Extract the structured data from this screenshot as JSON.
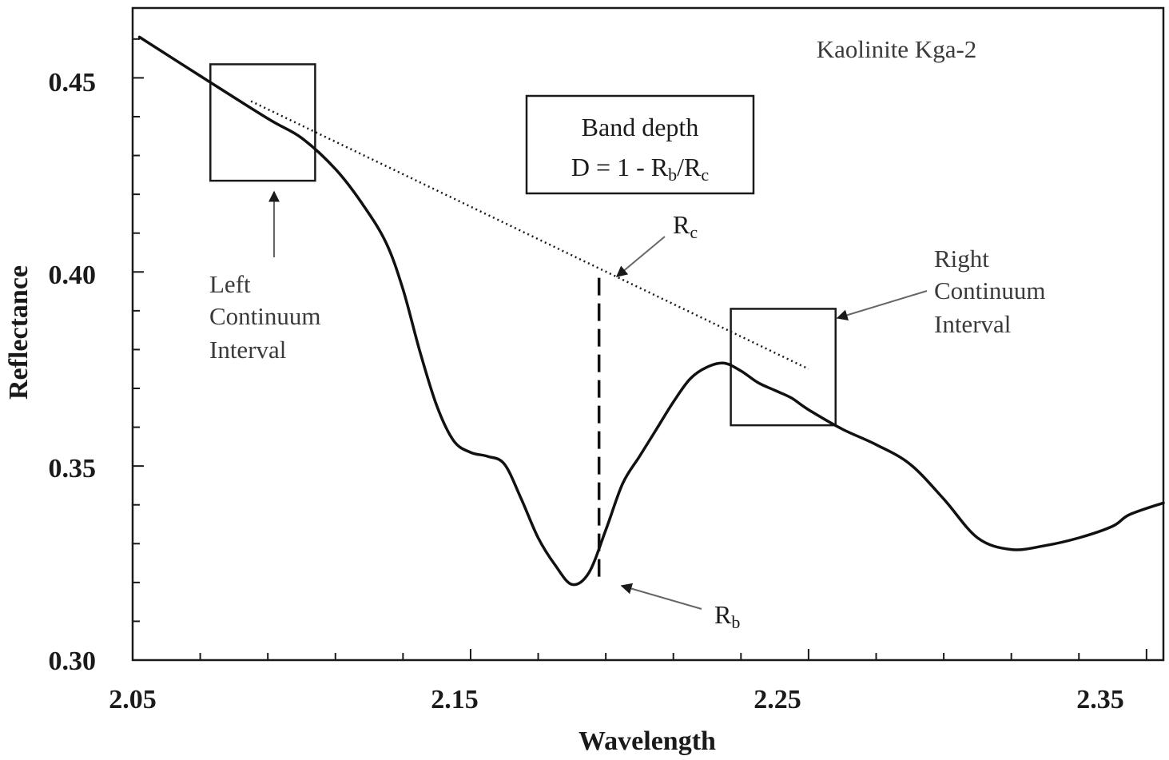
{
  "chart_data": {
    "type": "line",
    "title": "Kaolinite Kga-2",
    "xlabel": "Wavelength",
    "ylabel": "Reflectance",
    "xlim": [
      2.05,
      2.355
    ],
    "ylim": [
      0.3,
      0.468
    ],
    "xticks": [
      2.05,
      2.15,
      2.25,
      2.35
    ],
    "xtick_labels": [
      "2.05",
      "2.15",
      "2.25",
      "2.35"
    ],
    "yticks": [
      0.3,
      0.35,
      0.4,
      0.45
    ],
    "ytick_labels": [
      "0.30",
      "0.35",
      "0.40",
      "0.45"
    ],
    "x_minor_step": 0.02,
    "y_minor_step": 0.01,
    "grid": false,
    "series": [
      {
        "style": "solid",
        "x": [
          2.052,
          2.07,
          2.09,
          2.1,
          2.11,
          2.118,
          2.125,
          2.13,
          2.135,
          2.14,
          2.145,
          2.15,
          2.155,
          2.16,
          2.165,
          2.17,
          2.175,
          2.18,
          2.185,
          2.19,
          2.195,
          2.2,
          2.205,
          2.21,
          2.215,
          2.22,
          2.225,
          2.23,
          2.235,
          2.24,
          2.245,
          2.25,
          2.26,
          2.27,
          2.28,
          2.29,
          2.3,
          2.31,
          2.32,
          2.33,
          2.34,
          2.345,
          2.355
        ],
        "y": [
          0.4605,
          0.4505,
          0.4395,
          0.4345,
          0.4265,
          0.4175,
          0.4075,
          0.3955,
          0.3795,
          0.3655,
          0.3565,
          0.3535,
          0.3525,
          0.3505,
          0.3415,
          0.3315,
          0.3245,
          0.3195,
          0.3225,
          0.3335,
          0.3455,
          0.3525,
          0.3595,
          0.3665,
          0.3725,
          0.3755,
          0.3765,
          0.3745,
          0.3715,
          0.3695,
          0.3675,
          0.3645,
          0.3595,
          0.3555,
          0.3505,
          0.3415,
          0.3315,
          0.3285,
          0.3295,
          0.3315,
          0.3345,
          0.3375,
          0.3405
        ]
      },
      {
        "style": "dotted",
        "x": [
          2.085,
          2.25
        ],
        "y": [
          0.444,
          0.375
        ]
      }
    ],
    "band_depth": {
      "x": 2.188,
      "rc": 0.3985,
      "rb": 0.3195
    },
    "intervals": [
      {
        "x_range": [
          2.073,
          2.104
        ],
        "y_range": [
          0.4235,
          0.4535
        ]
      },
      {
        "x_range": [
          2.227,
          2.258
        ],
        "y_range": [
          0.3605,
          0.3905
        ]
      }
    ],
    "annotations": {
      "box_line1": "Band depth",
      "box_line2_pre": "D = 1 - R",
      "box_line2_sub1": "b",
      "box_line2_mid": "/R",
      "box_line2_sub2": "c",
      "rc_main": "R",
      "rc_sub": "c",
      "rb_main": "R",
      "rb_sub": "b",
      "left_line1": "Left",
      "left_line2": "Continuum",
      "left_line3": "Interval",
      "right_line1": "Right",
      "right_line2": "Continuum",
      "right_line3": "Interval"
    }
  }
}
